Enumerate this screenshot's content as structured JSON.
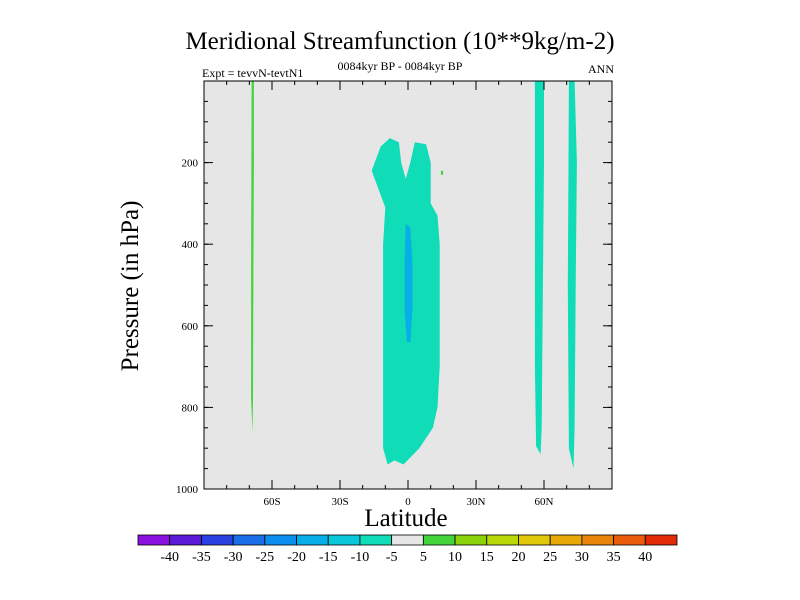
{
  "chart_data": {
    "type": "contour",
    "title": "Meridional Streamfunction (10**9kg/m-2)",
    "subtitle": "0084kyr BP - 0084kyr BP",
    "left_label": "Expt = tevvN-tevtN1",
    "right_label": "ANN",
    "xlabel": "Latitude",
    "ylabel": "Pressure (in hPa)",
    "xlim": [
      -90,
      90
    ],
    "ylim": [
      1000,
      0
    ],
    "x_ticks": [
      {
        "value": -60,
        "label": "60S"
      },
      {
        "value": -30,
        "label": "30S"
      },
      {
        "value": 0,
        "label": "0"
      },
      {
        "value": 30,
        "label": "30N"
      },
      {
        "value": 60,
        "label": "60N"
      }
    ],
    "y_ticks": [
      {
        "value": 200,
        "label": "200"
      },
      {
        "value": 400,
        "label": "400"
      },
      {
        "value": 600,
        "label": "600"
      },
      {
        "value": 800,
        "label": "800"
      },
      {
        "value": 1000,
        "label": "1000"
      }
    ],
    "background_color": "#e6e6e6",
    "colorbar": {
      "levels": [
        "-40",
        "-35",
        "-30",
        "-25",
        "-20",
        "-15",
        "-10",
        "-5",
        "5",
        "10",
        "15",
        "20",
        "25",
        "30",
        "35",
        "40"
      ],
      "colors": [
        "#8a12e0",
        "#5a1ad6",
        "#2a40e0",
        "#1a6ee8",
        "#0a8ef0",
        "#08aee8",
        "#0ac8d8",
        "#10dcb8",
        "#e6e6e6",
        "#44d43c",
        "#8ad20a",
        "#b8d808",
        "#e0c80a",
        "#e8a808",
        "#e8840a",
        "#e85c0a",
        "#e02a08"
      ]
    },
    "regions": [
      {
        "name": "antarctic-strip",
        "level": "5 to 10",
        "color": "#44d43c",
        "points": [
          [
            -69,
            0
          ],
          [
            -68,
            0
          ],
          [
            -68,
            200
          ],
          [
            -68.2,
            450
          ],
          [
            -68.4,
            780
          ],
          [
            -68.6,
            860
          ],
          [
            -69.2,
            780
          ],
          [
            -69.2,
            450
          ],
          [
            -69.1,
            200
          ]
        ]
      },
      {
        "name": "equatorial-cell",
        "level": "-10 to -5",
        "color": "#10dcb8",
        "points": [
          [
            -16,
            220
          ],
          [
            -12,
            160
          ],
          [
            -8,
            140
          ],
          [
            -4,
            150
          ],
          [
            -3,
            200
          ],
          [
            -1,
            240
          ],
          [
            1,
            200
          ],
          [
            3,
            150
          ],
          [
            8,
            155
          ],
          [
            10,
            200
          ],
          [
            10,
            300
          ],
          [
            13,
            330
          ],
          [
            14,
            400
          ],
          [
            14,
            500
          ],
          [
            14,
            700
          ],
          [
            13,
            800
          ],
          [
            11,
            850
          ],
          [
            5,
            900
          ],
          [
            -2,
            940
          ],
          [
            -6,
            930
          ],
          [
            -9,
            940
          ],
          [
            -11,
            900
          ],
          [
            -11,
            400
          ],
          [
            -10,
            310
          ]
        ]
      },
      {
        "name": "equatorial-core",
        "level": "-15 to -10",
        "color": "#08aee8",
        "points": [
          [
            -1,
            350
          ],
          [
            1,
            360
          ],
          [
            2,
            450
          ],
          [
            2,
            560
          ],
          [
            1,
            640
          ],
          [
            -0.5,
            640
          ],
          [
            -1.5,
            560
          ],
          [
            -1.5,
            450
          ]
        ]
      },
      {
        "name": "southern-hemisphere-edge",
        "level": "-10 to -5",
        "color": "#10dcb8",
        "points": [
          [
            56,
            0
          ],
          [
            60,
            0
          ],
          [
            60,
            200
          ],
          [
            59.5,
            500
          ],
          [
            59,
            850
          ],
          [
            58.5,
            915
          ],
          [
            56.5,
            895
          ],
          [
            56,
            700
          ],
          [
            56,
            300
          ]
        ]
      },
      {
        "name": "polar-cell",
        "level": "-10 to -5",
        "color": "#10dcb8",
        "points": [
          [
            71,
            0
          ],
          [
            73.5,
            0
          ],
          [
            74.5,
            200
          ],
          [
            74,
            500
          ],
          [
            73.5,
            850
          ],
          [
            73,
            950
          ],
          [
            71,
            900
          ],
          [
            70.5,
            500
          ],
          [
            70.8,
            200
          ]
        ]
      },
      {
        "name": "green-dot",
        "level": "5 to 10",
        "color": "#44d43c",
        "points": [
          [
            14.5,
            220
          ],
          [
            15.5,
            220
          ],
          [
            15.5,
            230
          ],
          [
            14.5,
            230
          ]
        ]
      }
    ]
  }
}
